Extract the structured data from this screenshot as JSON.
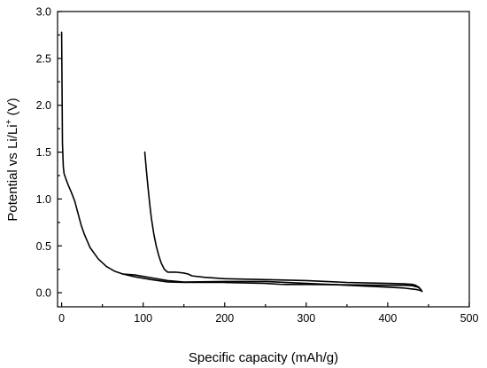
{
  "chart_data": {
    "type": "line",
    "xlabel": "Specific capacity (mAh/g)",
    "ylabel": {
      "prefix": "Potential vs Li/Li",
      "superscript": "+",
      "suffix": " (V)"
    },
    "xlim": [
      -5,
      500
    ],
    "ylim": [
      -0.15,
      3.0
    ],
    "xticks": [
      0,
      100,
      200,
      300,
      400,
      500
    ],
    "xticklabels": [
      "0",
      "100",
      "200",
      "300",
      "400",
      "500"
    ],
    "yticks": [
      0.0,
      0.5,
      1.0,
      1.5,
      2.0,
      2.5,
      3.0
    ],
    "yticklabels": [
      "0.0",
      "0.5",
      "1.0",
      "1.5",
      "2.0",
      "2.5",
      "3.0"
    ],
    "grid": false,
    "legend": "none",
    "series": [
      {
        "color": "#000000",
        "x": [
          0,
          0.5,
          1,
          2,
          3,
          5,
          8,
          12,
          16,
          20,
          24,
          28,
          35,
          45,
          55,
          65,
          75,
          90,
          110,
          130,
          150,
          200,
          250,
          300,
          350,
          400,
          420,
          430,
          435,
          440,
          442
        ],
        "y": [
          2.78,
          2.2,
          1.6,
          1.35,
          1.27,
          1.22,
          1.15,
          1.07,
          0.98,
          0.85,
          0.72,
          0.62,
          0.48,
          0.36,
          0.28,
          0.23,
          0.2,
          0.19,
          0.16,
          0.13,
          0.115,
          0.12,
          0.12,
          0.1,
          0.08,
          0.06,
          0.05,
          0.04,
          0.035,
          0.025,
          0.015
        ]
      },
      {
        "color": "#000000",
        "x": [
          442,
          440,
          437,
          430,
          420,
          400,
          350,
          300,
          275,
          268,
          250,
          200,
          150,
          130,
          110,
          90,
          75
        ],
        "y": [
          0.015,
          0.04,
          0.06,
          0.075,
          0.08,
          0.08,
          0.085,
          0.088,
          0.088,
          0.09,
          0.1,
          0.11,
          0.11,
          0.115,
          0.14,
          0.17,
          0.2
        ]
      },
      {
        "color": "#000000",
        "x": [
          102,
          104,
          106,
          108,
          110,
          113,
          116,
          119,
          122,
          126,
          130,
          140,
          150,
          155,
          160,
          175,
          200,
          250,
          300,
          350,
          400,
          420,
          430,
          434,
          438,
          441
        ],
        "y": [
          1.5,
          1.3,
          1.12,
          0.95,
          0.8,
          0.63,
          0.5,
          0.4,
          0.32,
          0.25,
          0.22,
          0.22,
          0.21,
          0.2,
          0.18,
          0.165,
          0.15,
          0.14,
          0.13,
          0.11,
          0.1,
          0.095,
          0.09,
          0.08,
          0.06,
          0.03
        ]
      }
    ]
  }
}
